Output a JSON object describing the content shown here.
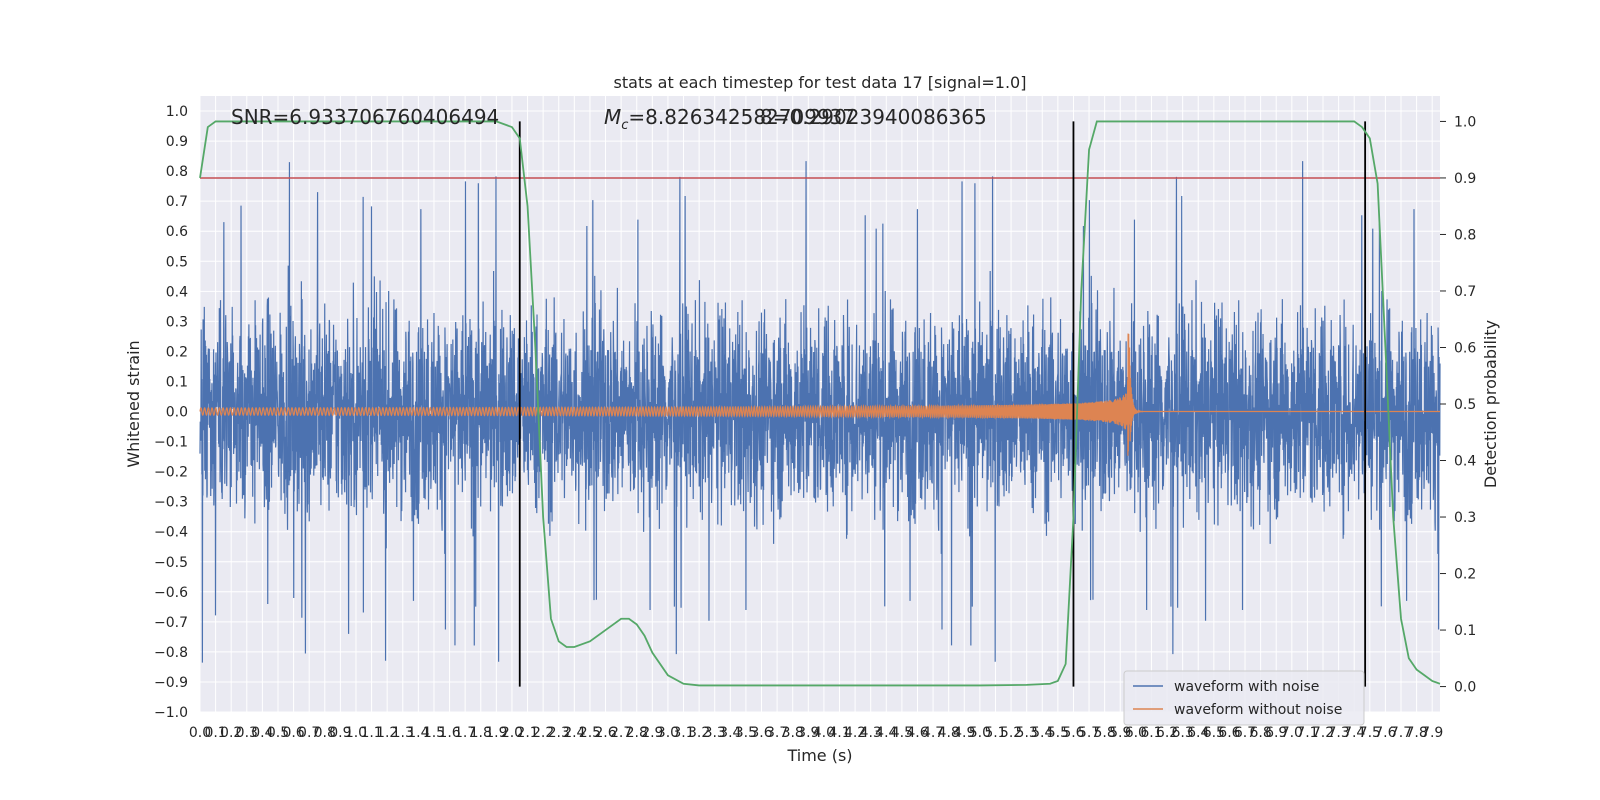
{
  "chart_data": {
    "type": "line",
    "title": "stats at each timestep for test data 17 [signal=1.0]",
    "xlabel": "Time (s)",
    "ylabel": "Whitened strain",
    "y2label": "Detection probability",
    "xlim": [
      0.0,
      7.95
    ],
    "ylim": [
      -1.0,
      1.05
    ],
    "y2lim": [
      -0.045,
      1.045
    ],
    "xticks": [
      "0.0",
      "0.1",
      "0.2",
      "0.3",
      "0.4",
      "0.5",
      "0.6",
      "0.7",
      "0.8",
      "0.9",
      "1.0",
      "1.1",
      "1.2",
      "1.3",
      "1.4",
      "1.5",
      "1.6",
      "1.7",
      "1.8",
      "1.9",
      "2.0",
      "2.1",
      "2.2",
      "2.3",
      "2.4",
      "2.5",
      "2.6",
      "2.7",
      "2.8",
      "2.9",
      "3.0",
      "3.1",
      "3.2",
      "3.3",
      "3.4",
      "3.5",
      "3.6",
      "3.7",
      "3.8",
      "3.9",
      "4.0",
      "4.1",
      "4.2",
      "4.3",
      "4.4",
      "4.5",
      "4.6",
      "4.7",
      "4.8",
      "4.9",
      "5.0",
      "5.1",
      "5.2",
      "5.3",
      "5.4",
      "5.5",
      "5.6",
      "5.7",
      "5.8",
      "5.9",
      "6.0",
      "6.1",
      "6.2",
      "6.3",
      "6.4",
      "6.5",
      "6.6",
      "6.7",
      "6.8",
      "6.9",
      "7.0",
      "7.1",
      "7.2",
      "7.3",
      "7.4",
      "7.5",
      "7.6",
      "7.7",
      "7.8",
      "7.9"
    ],
    "yticks": [
      "1.0",
      "0.9",
      "0.8",
      "0.7",
      "0.6",
      "0.5",
      "0.4",
      "0.3",
      "0.2",
      "0.1",
      "0.0",
      "−0.1",
      "−0.2",
      "−0.3",
      "−0.4",
      "−0.5",
      "−0.6",
      "−0.7",
      "−0.8",
      "−0.9",
      "−1.0"
    ],
    "y2ticks": [
      "1.0",
      "0.9",
      "0.8",
      "0.7",
      "0.6",
      "0.5",
      "0.4",
      "0.3",
      "0.2",
      "0.1",
      "0.0"
    ],
    "grid": true,
    "legend_position": "bottom-right",
    "annotations": {
      "snr": "SNR=6.933706760406494",
      "mc": "Mₙ=8.826342582709937",
      "mc_symbol": "M",
      "mc_sub": "c",
      "mc_rest": "=8.826342582709937",
      "overlap": "8=0.29023940086365"
    },
    "series": [
      {
        "name": "waveform with noise",
        "color": "#4c72b0",
        "noise_envelope": 0.45,
        "peak_max": 0.98,
        "peak_min": -0.92
      },
      {
        "name": "waveform without noise",
        "color": "#dd8452",
        "chirp_start_amp": 0.012,
        "merger_time": 5.96,
        "merger_amp_max": 0.26,
        "merger_amp_min": -0.19
      }
    ],
    "probability": {
      "color": "#55a868",
      "x": [
        0.0,
        0.05,
        0.1,
        0.2,
        0.5,
        1.0,
        1.5,
        1.9,
        2.0,
        2.05,
        2.1,
        2.15,
        2.2,
        2.25,
        2.3,
        2.35,
        2.4,
        2.5,
        2.6,
        2.7,
        2.75,
        2.8,
        2.85,
        2.9,
        3.0,
        3.1,
        3.2,
        3.5,
        4.0,
        4.5,
        5.0,
        5.3,
        5.45,
        5.5,
        5.55,
        5.6,
        5.65,
        5.7,
        5.75,
        5.8,
        6.0,
        6.5,
        7.0,
        7.4,
        7.45,
        7.5,
        7.55,
        7.6,
        7.65,
        7.7,
        7.75,
        7.8,
        7.85,
        7.9,
        7.95
      ],
      "y": [
        0.9,
        0.99,
        1.0,
        1.0,
        1.0,
        1.0,
        1.0,
        1.0,
        0.99,
        0.97,
        0.85,
        0.6,
        0.3,
        0.12,
        0.08,
        0.07,
        0.07,
        0.08,
        0.1,
        0.12,
        0.12,
        0.11,
        0.09,
        0.06,
        0.02,
        0.005,
        0.002,
        0.002,
        0.002,
        0.002,
        0.002,
        0.003,
        0.005,
        0.01,
        0.04,
        0.3,
        0.7,
        0.95,
        1.0,
        1.0,
        1.0,
        1.0,
        1.0,
        1.0,
        0.99,
        0.97,
        0.89,
        0.6,
        0.3,
        0.12,
        0.05,
        0.03,
        0.02,
        0.01,
        0.005
      ]
    },
    "threshold": {
      "y": 0.9,
      "color": "#c44e52",
      "axis": "y2"
    },
    "detection_markers": [
      2.05,
      5.6,
      7.47
    ]
  }
}
